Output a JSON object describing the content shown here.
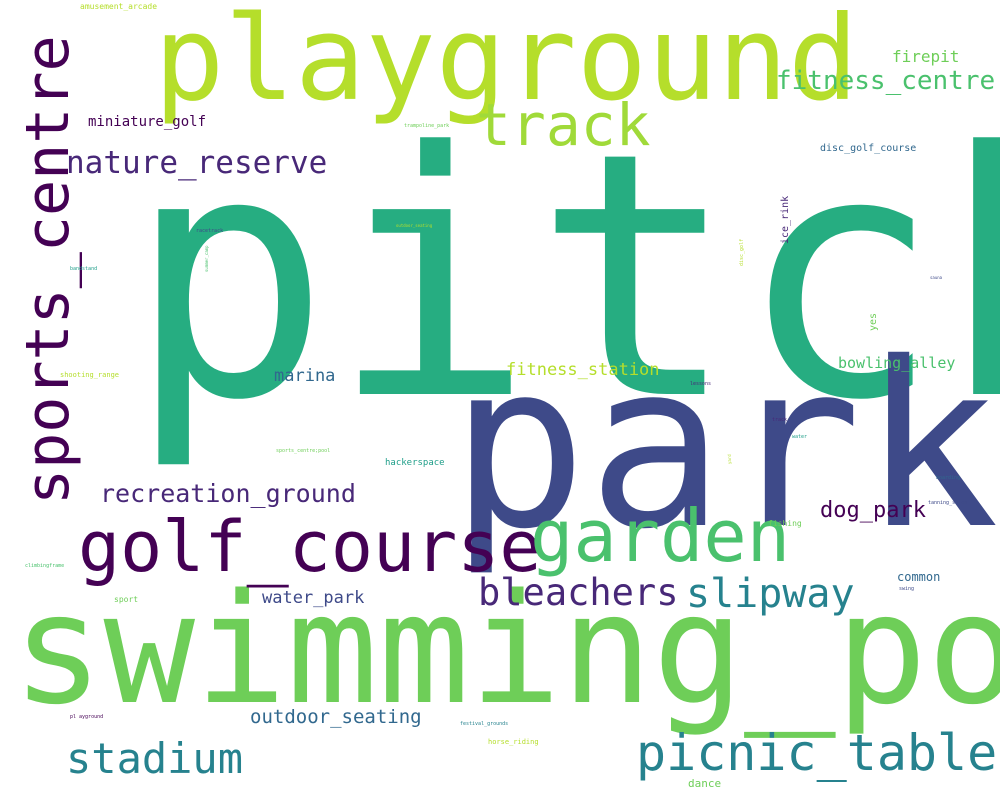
{
  "words": {
    "pitch": "pitch",
    "park": "park",
    "swimming_pool": "swimming_pool",
    "playground": "playground",
    "golf_course": "golf_course",
    "garden": "garden",
    "sports_centre": "sports_centre",
    "track": "track",
    "picnic_table": "picnic_table",
    "stadium": "stadium",
    "bleachers": "bleachers",
    "slipway": "slipway",
    "nature_reserve": "nature_reserve",
    "recreation_ground": "recreation_ground",
    "fitness_centre": "fitness_centre",
    "dog_park": "dog_park",
    "marina": "marina",
    "water_park": "water_park",
    "outdoor_seating": "outdoor_seating",
    "fitness_station": "fitness_station",
    "bowling_alley": "bowling_alley",
    "firepit": "firepit",
    "miniature_golf": "miniature_golf",
    "ice_rink": "ice_rink",
    "disc_golf_course": "disc_golf_course",
    "common": "common",
    "yes": "yes",
    "hackerspace": "hackerspace",
    "amusement_arcade": "amusement_arcade",
    "shooting_range": "shooting_range",
    "sport": "sport",
    "fishing": "fishing",
    "horse_riding": "horse_riding",
    "dance": "dance",
    "festival_grounds": "festival_grounds",
    "sports_centre_pool": "sports_centre;pool",
    "racetrack": "racetrack",
    "bandstand": "bandstand",
    "climbingframe": "climbingframe",
    "playground_small": "pl ayground",
    "trampoline_park": "trampoline_park",
    "outdoor_seating_small": "outdoor_seating",
    "disc_golf": "disc_golf",
    "sauna": "sauna",
    "lessons": "lessons",
    "track_small": "track",
    "water": "water",
    "boarding": "boarding",
    "tanning_salon": "tanning_salon",
    "swing": "swing",
    "summer_camp": "summer_camp",
    "yard": "yard"
  },
  "colors": {
    "teal_green": "#26ad81",
    "indigo": "#3e4a89",
    "light_green": "#6ece58",
    "yellow_green": "#b5de2b",
    "dark_purple": "#440154",
    "purple": "#482878",
    "blue_teal": "#26828e",
    "slate_blue": "#31688e",
    "lime": "#a0da39",
    "green": "#4ac16d",
    "cyan": "#1f9e89"
  }
}
